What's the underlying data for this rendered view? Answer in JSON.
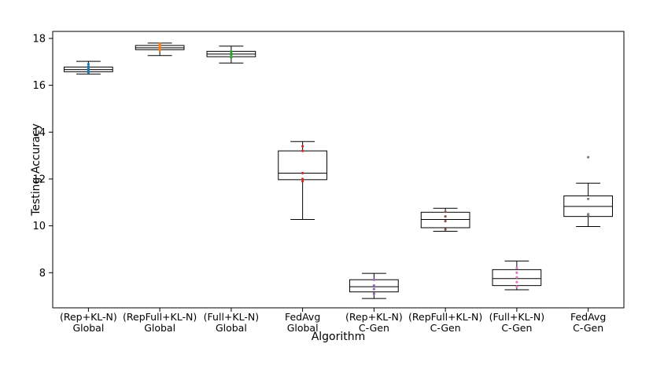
{
  "chart_data": {
    "type": "box",
    "title": "",
    "xlabel": "Algorithm",
    "ylabel": "Testing Accuracy",
    "ylim": [
      6.5,
      18.3
    ],
    "yticks": [
      8,
      10,
      12,
      14,
      16,
      18
    ],
    "grid": false,
    "categories": [
      [
        "(Rep+KL-N)",
        "Global"
      ],
      [
        "(RepFull+KL-N)",
        "Global"
      ],
      [
        "(Full+KL-N)",
        "Global"
      ],
      [
        "FedAvg",
        "Global"
      ],
      [
        "(Rep+KL-N)",
        "C-Gen"
      ],
      [
        "(RepFull+KL-N)",
        "C-Gen"
      ],
      [
        "(Full+KL-N)",
        "C-Gen"
      ],
      [
        "FedAvg",
        "C-Gen"
      ]
    ],
    "boxes": [
      {
        "whisker_low": 16.48,
        "q1": 16.58,
        "median": 16.67,
        "q3": 16.78,
        "whisker_high": 17.02,
        "fliers": [],
        "points": [
          16.55,
          16.62,
          16.68,
          16.72,
          16.8,
          16.9
        ],
        "color": "#1f77b4"
      },
      {
        "whisker_low": 17.27,
        "q1": 17.52,
        "median": 17.6,
        "q3": 17.7,
        "whisker_high": 17.8,
        "fliers": [],
        "points": [
          17.5,
          17.58,
          17.63,
          17.7,
          17.76
        ],
        "color": "#ff7f0e"
      },
      {
        "whisker_low": 16.95,
        "q1": 17.22,
        "median": 17.33,
        "q3": 17.45,
        "whisker_high": 17.67,
        "fliers": [],
        "points": [
          17.2,
          17.3,
          17.36,
          17.44
        ],
        "color": "#2ca02c"
      },
      {
        "whisker_low": 10.27,
        "q1": 11.97,
        "median": 12.25,
        "q3": 13.2,
        "whisker_high": 13.6,
        "fliers": [],
        "points": [
          11.9,
          12.0,
          12.25,
          13.2,
          13.4
        ],
        "color": "#d62728"
      },
      {
        "whisker_low": 6.9,
        "q1": 7.18,
        "median": 7.4,
        "q3": 7.7,
        "whisker_high": 7.97,
        "fliers": [],
        "points": [
          7.1,
          7.3,
          7.45,
          7.7
        ],
        "color": "#9467bd"
      },
      {
        "whisker_low": 9.77,
        "q1": 9.92,
        "median": 10.27,
        "q3": 10.58,
        "whisker_high": 10.75,
        "fliers": [],
        "points": [
          9.85,
          10.2,
          10.4,
          10.6
        ],
        "color": "#8c564b"
      },
      {
        "whisker_low": 7.27,
        "q1": 7.45,
        "median": 7.75,
        "q3": 8.13,
        "whisker_high": 8.5,
        "fliers": [],
        "points": [
          7.4,
          7.6,
          7.8,
          8.0,
          8.2
        ],
        "color": "#e377c2"
      },
      {
        "whisker_low": 9.97,
        "q1": 10.4,
        "median": 10.83,
        "q3": 11.28,
        "whisker_high": 11.82,
        "fliers": [
          12.93
        ],
        "points": [
          10.45,
          10.5,
          11.15
        ],
        "color": "#7f7f7f"
      }
    ]
  }
}
